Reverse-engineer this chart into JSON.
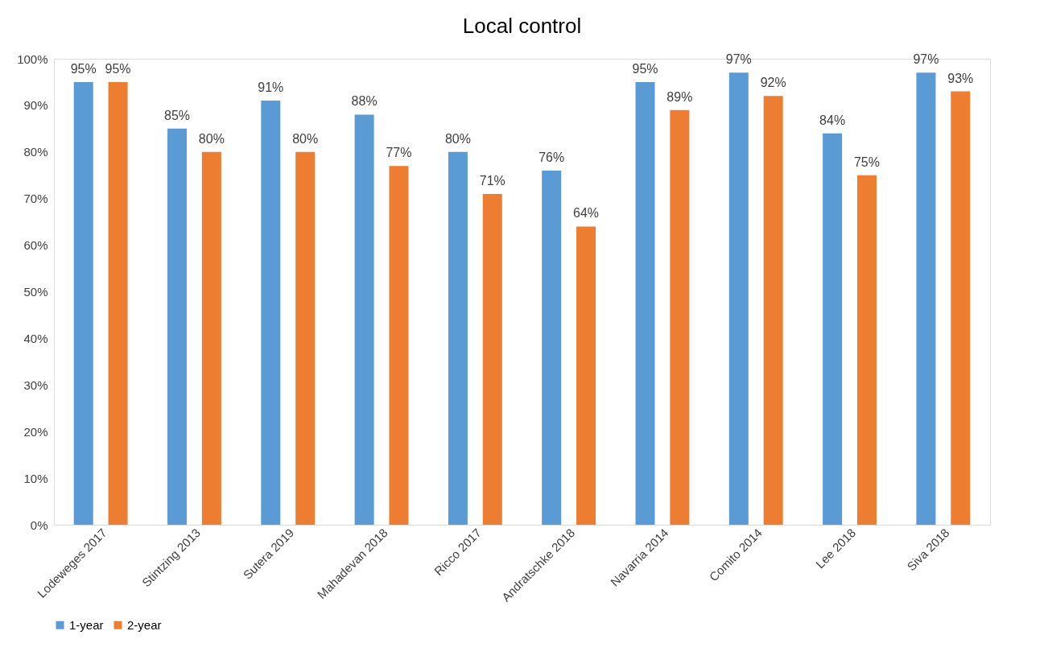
{
  "chart_data": {
    "type": "bar",
    "title": "Local control",
    "categories": [
      "Lodeweges 2017",
      "Stintzing 2013",
      "Sutera 2019",
      "Mahadevan 2018",
      "Ricco 2017",
      "Andratschke 2018",
      "Navarria 2014",
      "Comito 2014",
      "Lee 2018",
      "Siva 2018"
    ],
    "series": [
      {
        "name": "1-year",
        "color": "#5b9bd5",
        "values": [
          95,
          85,
          91,
          88,
          80,
          76,
          95,
          97,
          84,
          97
        ],
        "value_labels": [
          "95%",
          "85%",
          "91%",
          "88%",
          "80%",
          "76%",
          "95%",
          "97%",
          "84%",
          "97%"
        ]
      },
      {
        "name": "2-year",
        "color": "#ed7d31",
        "values": [
          95,
          80,
          80,
          77,
          71,
          64,
          89,
          92,
          75,
          93
        ],
        "value_labels": [
          "95%",
          "80%",
          "80%",
          "77%",
          "71%",
          "64%",
          "89%",
          "92%",
          "75%",
          "93%"
        ]
      }
    ],
    "ylim": [
      0,
      100
    ],
    "yticks": [
      {
        "value": 0,
        "label": "0%"
      },
      {
        "value": 10,
        "label": "10%"
      },
      {
        "value": 20,
        "label": "20%"
      },
      {
        "value": 30,
        "label": "30%"
      },
      {
        "value": 40,
        "label": "40%"
      },
      {
        "value": 50,
        "label": "50%"
      },
      {
        "value": 60,
        "label": "60%"
      },
      {
        "value": 70,
        "label": "70%"
      },
      {
        "value": 80,
        "label": "80%"
      },
      {
        "value": 90,
        "label": "90%"
      },
      {
        "value": 100,
        "label": "100%"
      }
    ],
    "legend": "bottom"
  }
}
